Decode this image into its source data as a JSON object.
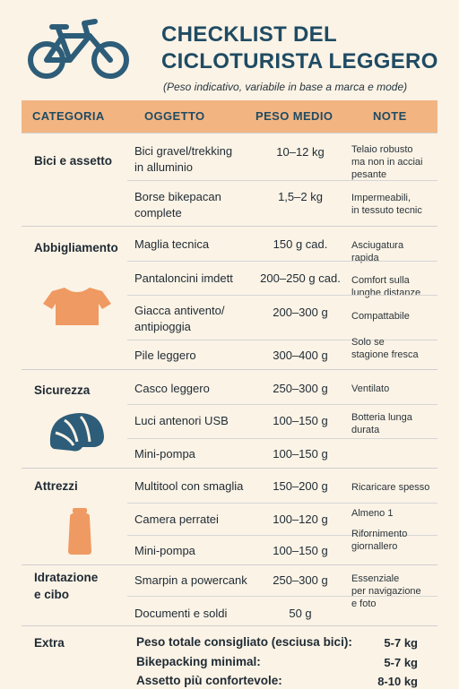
{
  "header": {
    "title_line1": "CHECKLIST DEL",
    "title_line2": "CICLOTURISTA LEGGERO",
    "subtitle": "(Peso indicativo, variabile in base a marca e mode)"
  },
  "table": {
    "columns": [
      "CATEGORIA",
      "OGGETTO",
      "PESO MEDIO",
      "NOTE"
    ],
    "sections": [
      {
        "category": "Bici e assetto",
        "rows": [
          {
            "item": "Bici gravel/trekking\nin alluminio",
            "weight": "10–12 kg",
            "note": "Telaio robusto\nma non in acciai\npesante"
          },
          {
            "item": "Borse bikepacan\ncomplete",
            "weight": "1,5–2 kg",
            "note": "Impermeabili,\nin tessuto tecnic"
          }
        ]
      },
      {
        "category": "Abbigliamento",
        "icon": "t-shirt-icon",
        "rows": [
          {
            "item": "Maglia tecnica",
            "weight": "150 g cad.",
            "note": "Asciugatura\nrapida"
          },
          {
            "item": "Pantaloncini imdett",
            "weight": "200–250 g cad.",
            "note": "Comfort sulla\nlunghe distanze"
          },
          {
            "item": "Giacca antivento/\nantipioggia",
            "weight": "200–300 g",
            "note": "Compattabile"
          },
          {
            "item": "Pile leggero",
            "weight": "300–400 g",
            "note": "Solo se\nstagione fresca"
          }
        ]
      },
      {
        "category": "Sicurezza",
        "icon": "helmet-icon",
        "rows": [
          {
            "item": "Casco leggero",
            "weight": "250–300 g",
            "note": "Ventilato"
          },
          {
            "item": "Luci antenori USB",
            "weight": "100–150 g",
            "note": "Botteria lunga\ndurata"
          },
          {
            "item": "Mini-pompa",
            "weight": "100–150 g",
            "note": ""
          }
        ]
      },
      {
        "category": "Attrezzi",
        "icon": "bottle-icon",
        "rows": [
          {
            "item": "Multitool con smaglia",
            "weight": "150–200 g",
            "note": "Ricaricare spesso"
          },
          {
            "item": "Camera perratei",
            "weight": "100–120 g",
            "note": "Almeno 1"
          },
          {
            "item": "Mini-pompa",
            "weight": "100–150 g",
            "note": "Rifornimento\ngiornallero"
          }
        ]
      },
      {
        "category": "Idratazione\ne cibo",
        "rows": [
          {
            "item": "Smarpin a powercank",
            "weight": "250–300 g",
            "note": "Essenziale\nper navigazione\ne foto"
          },
          {
            "item": "Documenti e soldi",
            "weight": "50 g",
            "note": ""
          }
        ]
      }
    ]
  },
  "extra": {
    "category": "Extra",
    "lines": [
      {
        "label": "Peso totale consigliato (esciusa bici):",
        "value": "5-7 kg"
      },
      {
        "label": "Bikepacking minimal:",
        "value": "5-7 kg"
      },
      {
        "label": "Assetto più confortevole:",
        "value": "8-10 kg"
      }
    ]
  },
  "colors": {
    "accent": "#f2b582",
    "icon_orange": "#ef9a62",
    "icon_blue": "#2d5d78",
    "title_blue": "#1f4b63",
    "background": "#fbf3e6"
  }
}
